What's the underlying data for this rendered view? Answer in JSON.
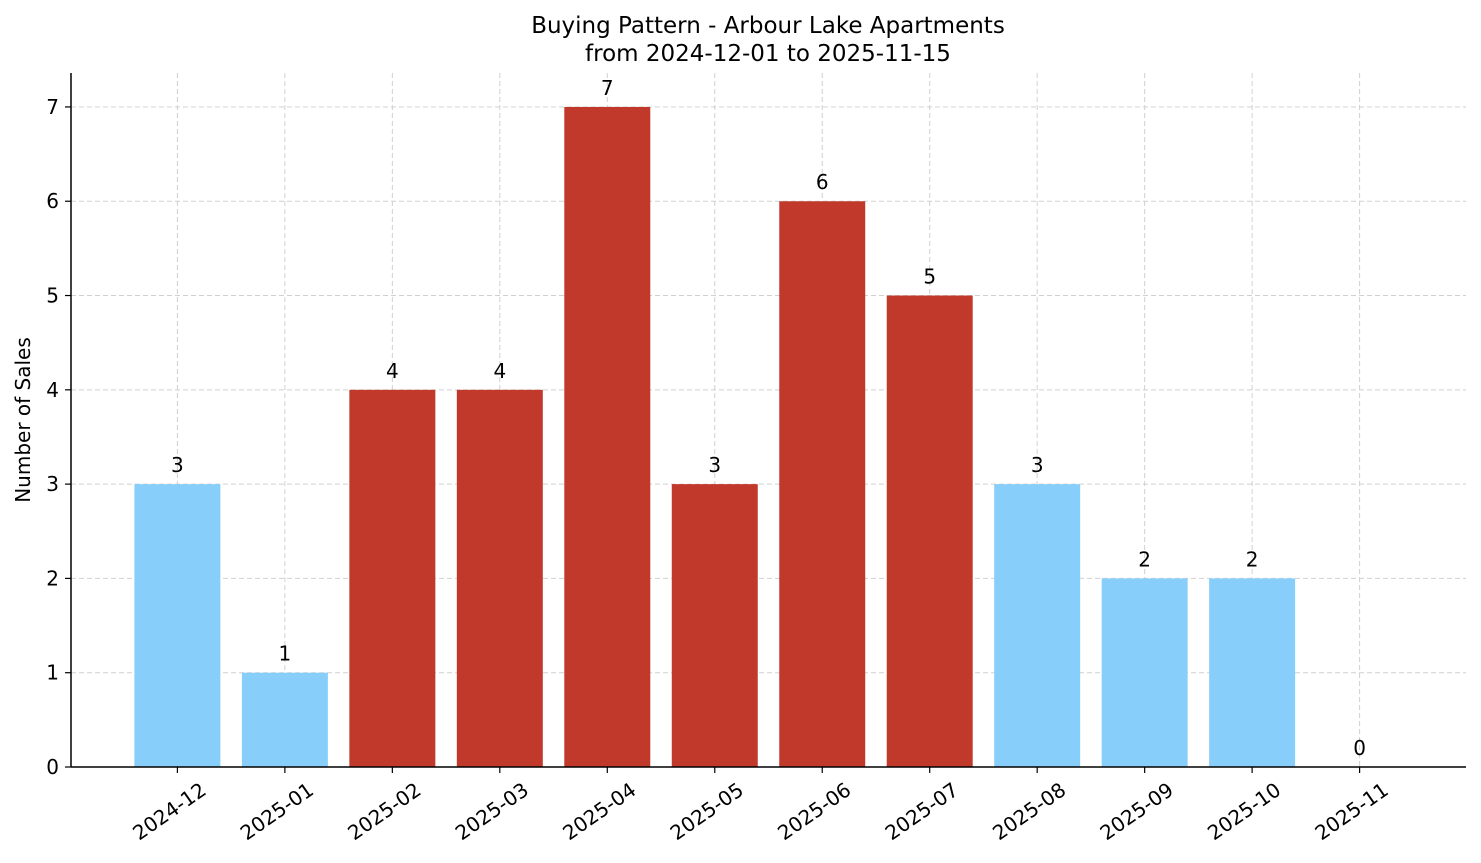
{
  "chart_data": {
    "type": "bar",
    "title": "Buying Pattern - Arbour Lake Apartments",
    "subtitle": "from 2024-12-01 to 2025-11-15",
    "y_label": "Number of Sales",
    "categories": [
      "2024-12",
      "2025-01",
      "2025-02",
      "2025-03",
      "2025-04",
      "2025-05",
      "2025-06",
      "2025-07",
      "2025-08",
      "2025-09",
      "2025-10",
      "2025-11"
    ],
    "values": [
      3,
      1,
      4,
      4,
      7,
      3,
      6,
      5,
      3,
      2,
      2,
      0
    ],
    "colors": [
      "#87cefa",
      "#87cefa",
      "#c0392b",
      "#c0392b",
      "#c0392b",
      "#c0392b",
      "#c0392b",
      "#c0392b",
      "#87cefa",
      "#87cefa",
      "#87cefa",
      "#87cefa"
    ],
    "ylim": [
      0,
      7.36
    ],
    "yticks": [
      0,
      1,
      2,
      3,
      4,
      5,
      6,
      7
    ],
    "grid": true
  }
}
